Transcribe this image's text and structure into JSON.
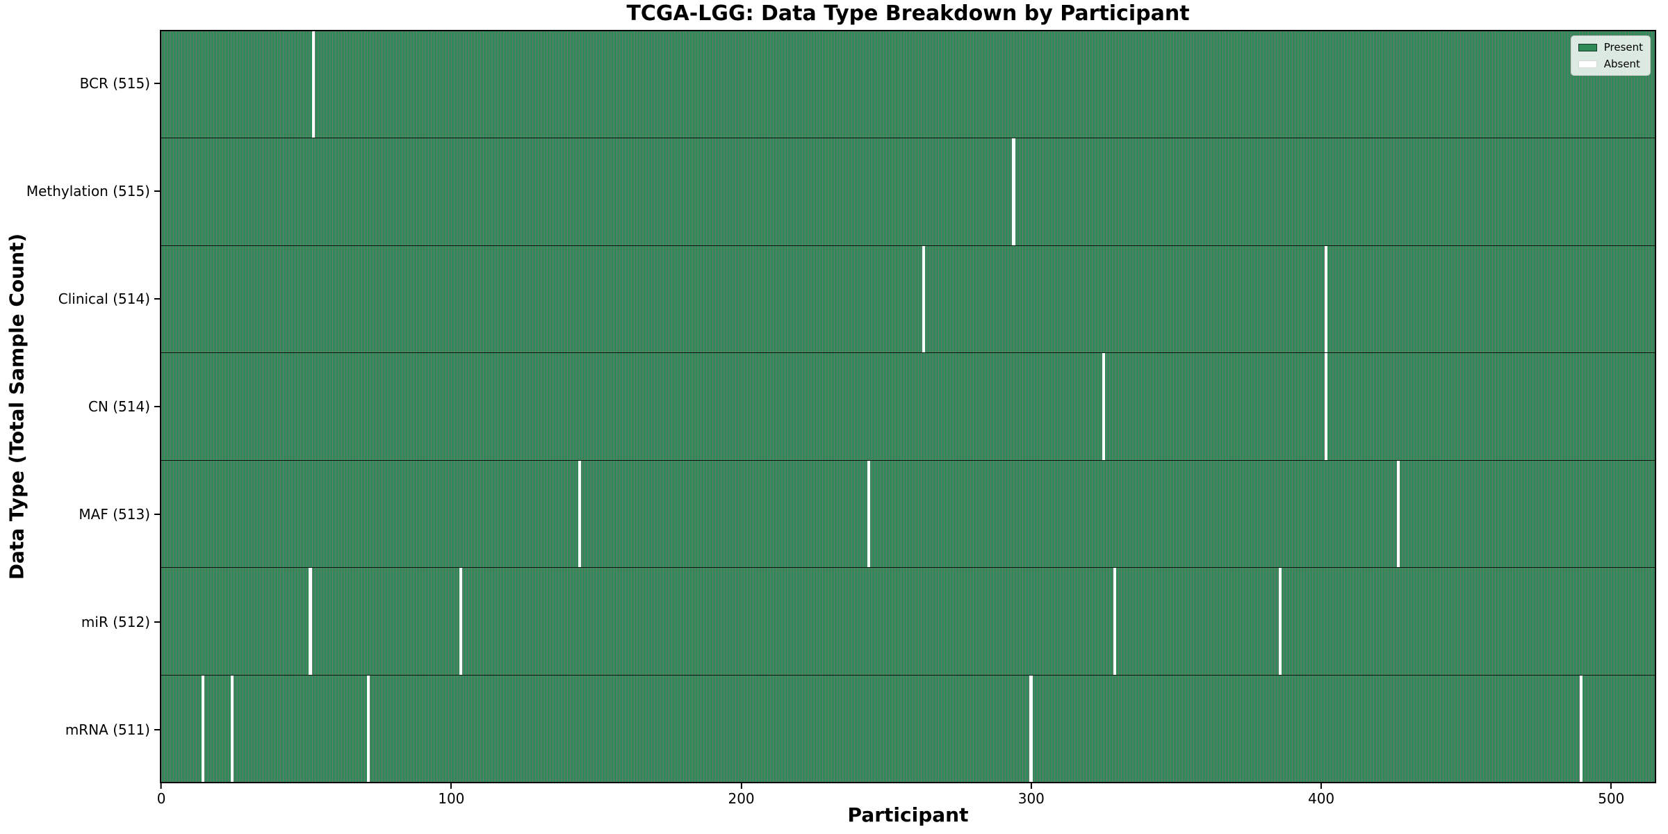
{
  "title": "TCGA-LGG: Data Type Breakdown by Participant",
  "chart_data": {
    "type": "heatmap",
    "title": "TCGA-LGG: Data Type Breakdown by Participant",
    "xlabel": "Participant",
    "ylabel": "Data Type (Total Sample Count)",
    "x_ticks": [
      0,
      100,
      200,
      300,
      400,
      500
    ],
    "xlim": [
      0,
      516
    ],
    "total_participants": 516,
    "grid": false,
    "legend_position": "upper right",
    "legend": [
      {
        "label": "Present",
        "color": "#2e8b57"
      },
      {
        "label": "Absent",
        "color": "#ffffff"
      }
    ],
    "colors": {
      "present": "#2e8b57",
      "absent": "#ffffff",
      "bar_edge": "rgba(0,0,0,0.55)"
    },
    "rows": [
      {
        "label": "BCR (515)",
        "data_type": "BCR",
        "present_count": 515,
        "absent_participants": [
          52
        ]
      },
      {
        "label": "Methylation (515)",
        "data_type": "Methylation",
        "present_count": 515,
        "absent_participants": [
          294
        ]
      },
      {
        "label": "Clinical (514)",
        "data_type": "Clinical",
        "present_count": 514,
        "absent_participants": [
          263,
          402
        ]
      },
      {
        "label": "CN (514)",
        "data_type": "CN",
        "present_count": 514,
        "absent_participants": [
          325,
          402
        ]
      },
      {
        "label": "MAF (513)",
        "data_type": "MAF",
        "present_count": 513,
        "absent_participants": [
          144,
          244,
          427
        ]
      },
      {
        "label": "miR (512)",
        "data_type": "miR",
        "present_count": 512,
        "absent_participants": [
          51,
          103,
          329,
          386
        ]
      },
      {
        "label": "mRNA (511)",
        "data_type": "mRNA",
        "present_count": 511,
        "absent_participants": [
          14,
          24,
          71,
          300,
          490
        ]
      }
    ]
  }
}
